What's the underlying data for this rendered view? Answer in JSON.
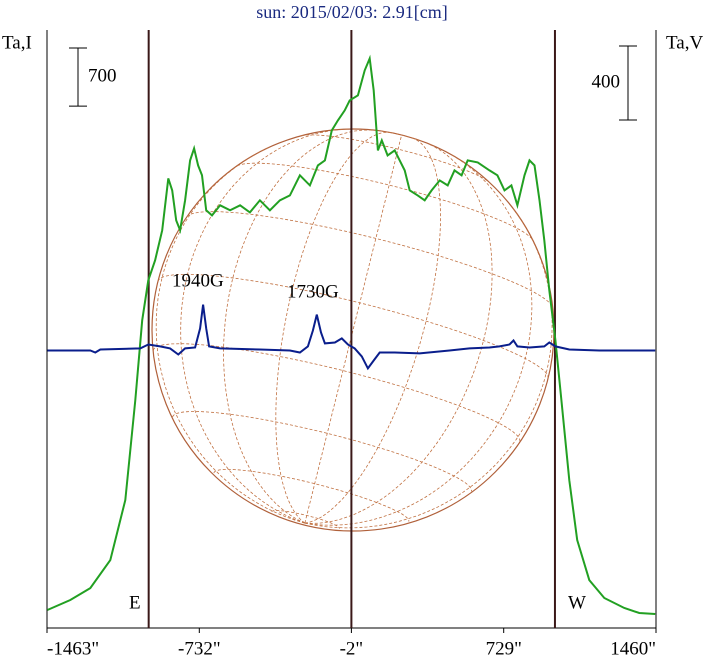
{
  "chart_data": {
    "type": "line",
    "title": "sun: 2015/02/03: 2.91[cm]",
    "y_label": "Ta,I",
    "y2_label": "Ta,V",
    "xlim": [
      -1463,
      1460
    ],
    "xticks": [
      {
        "value": -1463,
        "label": "-1463\""
      },
      {
        "value": -732,
        "label": "-732\""
      },
      {
        "value": -2,
        "label": "-2\""
      },
      {
        "value": 729,
        "label": "729\""
      },
      {
        "value": 1460,
        "label": "1460\""
      }
    ],
    "ylim": [
      -200,
      7000
    ],
    "y2lim": [
      -1500,
      1732
    ],
    "vlines": [
      -975,
      -2,
      975
    ],
    "scale_bars": [
      {
        "value": 700,
        "axis": "y"
      },
      {
        "value": 400,
        "axis": "y2"
      }
    ],
    "annotations": [
      "1940G",
      "1730G",
      "E",
      "W"
    ],
    "series": [
      {
        "name": "Ta,I",
        "color": "#22a022",
        "x": [
          -1461,
          -1351,
          -1255,
          -1159,
          -1087,
          -1039,
          -1006,
          -977,
          -944,
          -910,
          -881,
          -862,
          -843,
          -824,
          -800,
          -776,
          -757,
          -738,
          -719,
          -699,
          -671,
          -632,
          -584,
          -536,
          -489,
          -441,
          -393,
          -345,
          -297,
          -249,
          -201,
          -163,
          -129,
          -96,
          -67,
          -34,
          -10,
          29,
          62,
          86,
          105,
          125,
          144,
          172,
          206,
          230,
          254,
          278,
          316,
          350,
          383,
          422,
          460,
          493,
          527,
          556,
          604,
          661,
          699,
          733,
          766,
          795,
          829,
          853,
          877,
          901,
          924,
          948,
          977,
          1006,
          1044,
          1082,
          1140,
          1212,
          1308,
          1380,
          1456
        ],
        "values": [
          17,
          137,
          281,
          618,
          1340,
          2543,
          3505,
          3986,
          4227,
          4588,
          5213,
          5069,
          4708,
          4588,
          4949,
          5430,
          5574,
          5370,
          5250,
          4829,
          4768,
          4889,
          4829,
          4889,
          4804,
          4949,
          4829,
          4949,
          5009,
          5250,
          5129,
          5370,
          5430,
          5791,
          5911,
          6032,
          6152,
          6212,
          6513,
          6657,
          6272,
          5550,
          5671,
          5490,
          5550,
          5430,
          5310,
          5069,
          5009,
          4949,
          5069,
          5189,
          5129,
          5310,
          5250,
          5430,
          5406,
          5310,
          5250,
          5069,
          5129,
          4889,
          5250,
          5430,
          5370,
          4949,
          4468,
          3866,
          3265,
          2543,
          1580,
          859,
          377,
          161,
          41,
          -20,
          -32
        ]
      },
      {
        "name": "Ta,V",
        "color": "#0a1e8c",
        "axis": "y2",
        "x": [
          -1461,
          -1255,
          -1231,
          -1207,
          -1015,
          -977,
          -920,
          -872,
          -833,
          -800,
          -752,
          -728,
          -714,
          -699,
          -685,
          -632,
          -441,
          -297,
          -249,
          -211,
          -187,
          -168,
          -148,
          -129,
          -81,
          -48,
          -19,
          14,
          48,
          77,
          105,
          134,
          206,
          326,
          469,
          565,
          661,
          709,
          757,
          776,
          795,
          853,
          924,
          948,
          977,
          1044,
          1188,
          1456
        ],
        "values": [
          0,
          0,
          -11,
          5,
          11,
          32,
          22,
          11,
          -22,
          11,
          16,
          119,
          248,
          119,
          22,
          11,
          5,
          0,
          -11,
          22,
          108,
          194,
          97,
          38,
          43,
          65,
          32,
          11,
          -32,
          -97,
          -54,
          -11,
          -11,
          -16,
          0,
          11,
          16,
          22,
          32,
          54,
          22,
          16,
          22,
          43,
          22,
          5,
          0,
          0
        ]
      }
    ]
  }
}
